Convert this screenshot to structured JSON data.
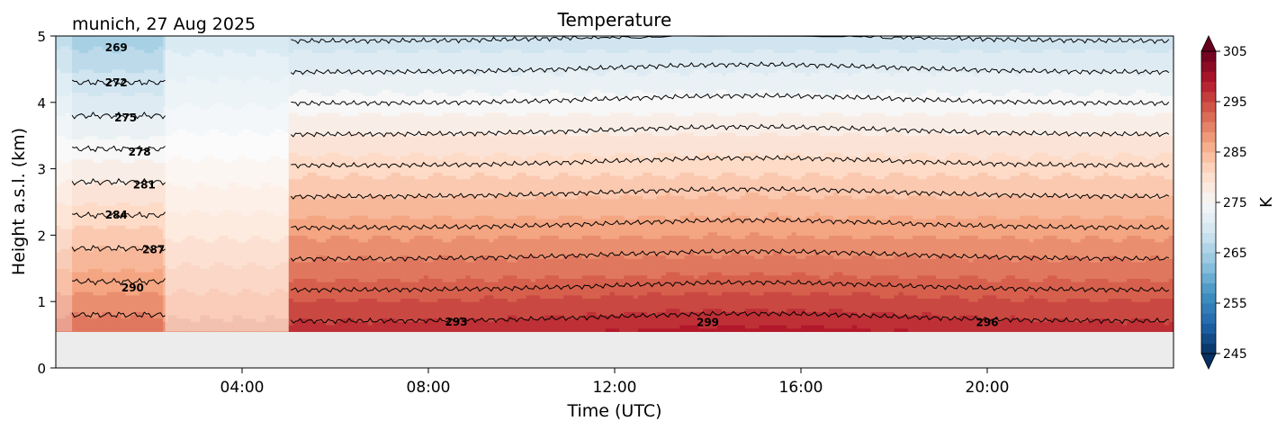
{
  "chart_data": {
    "type": "heatmap",
    "title": "Temperature",
    "subtitle": "munich, 27 Aug 2025",
    "xlabel": "Time (UTC)",
    "ylabel": "Height a.s.l. (km)",
    "xlim": [
      0,
      24
    ],
    "ylim": [
      0,
      5
    ],
    "x_ticks": [
      4,
      8,
      12,
      16,
      20
    ],
    "x_tick_labels": [
      "04:00",
      "08:00",
      "12:00",
      "16:00",
      "20:00"
    ],
    "y_ticks": [
      0,
      1,
      2,
      3,
      4,
      5
    ],
    "y_tick_labels": [
      "0",
      "1",
      "2",
      "3",
      "4",
      "5"
    ],
    "z_range": [
      245,
      305
    ],
    "colorbar": {
      "label": "K",
      "ticks": [
        245,
        255,
        265,
        275,
        285,
        295,
        305
      ],
      "tick_labels": [
        "245",
        "255",
        "265",
        "275",
        "285",
        "295",
        "305"
      ],
      "colormap": "RdBu_r",
      "extend": "both"
    },
    "data_bottom_km": 0.55,
    "below_data_color": "#ececec",
    "data_gaps": [
      {
        "start_hour": 2.35,
        "end_hour": 5.0
      }
    ],
    "contour_levels": [
      269,
      272,
      275,
      278,
      281,
      284,
      287,
      290,
      293,
      296,
      299
    ],
    "contour_labels": [
      {
        "text": "269",
        "x": 1.3,
        "y": 4.77
      },
      {
        "text": "272",
        "x": 1.3,
        "y": 4.24
      },
      {
        "text": "275",
        "x": 1.5,
        "y": 3.71
      },
      {
        "text": "278",
        "x": 1.8,
        "y": 3.2
      },
      {
        "text": "281",
        "x": 1.9,
        "y": 2.7
      },
      {
        "text": "284",
        "x": 1.3,
        "y": 2.25
      },
      {
        "text": "287",
        "x": 2.1,
        "y": 1.73
      },
      {
        "text": "290",
        "x": 1.65,
        "y": 1.15
      },
      {
        "text": "293",
        "x": 8.6,
        "y": 0.64
      },
      {
        "text": "299",
        "x": 14.0,
        "y": 0.63
      },
      {
        "text": "296",
        "x": 20.0,
        "y": 0.63
      }
    ],
    "profiles": [
      {
        "period": "00:00-02:20",
        "surface_temp_K": 291.5,
        "lapse_K_per_km": 6.0
      },
      {
        "period": "02:20-05:00",
        "surface_temp_K": 289.0,
        "lapse_K_per_km": 5.0
      },
      {
        "period": "05:00-24:00",
        "surface_temp_K": 297.0,
        "lapse_K_per_km": 6.4
      }
    ],
    "grid": false
  }
}
